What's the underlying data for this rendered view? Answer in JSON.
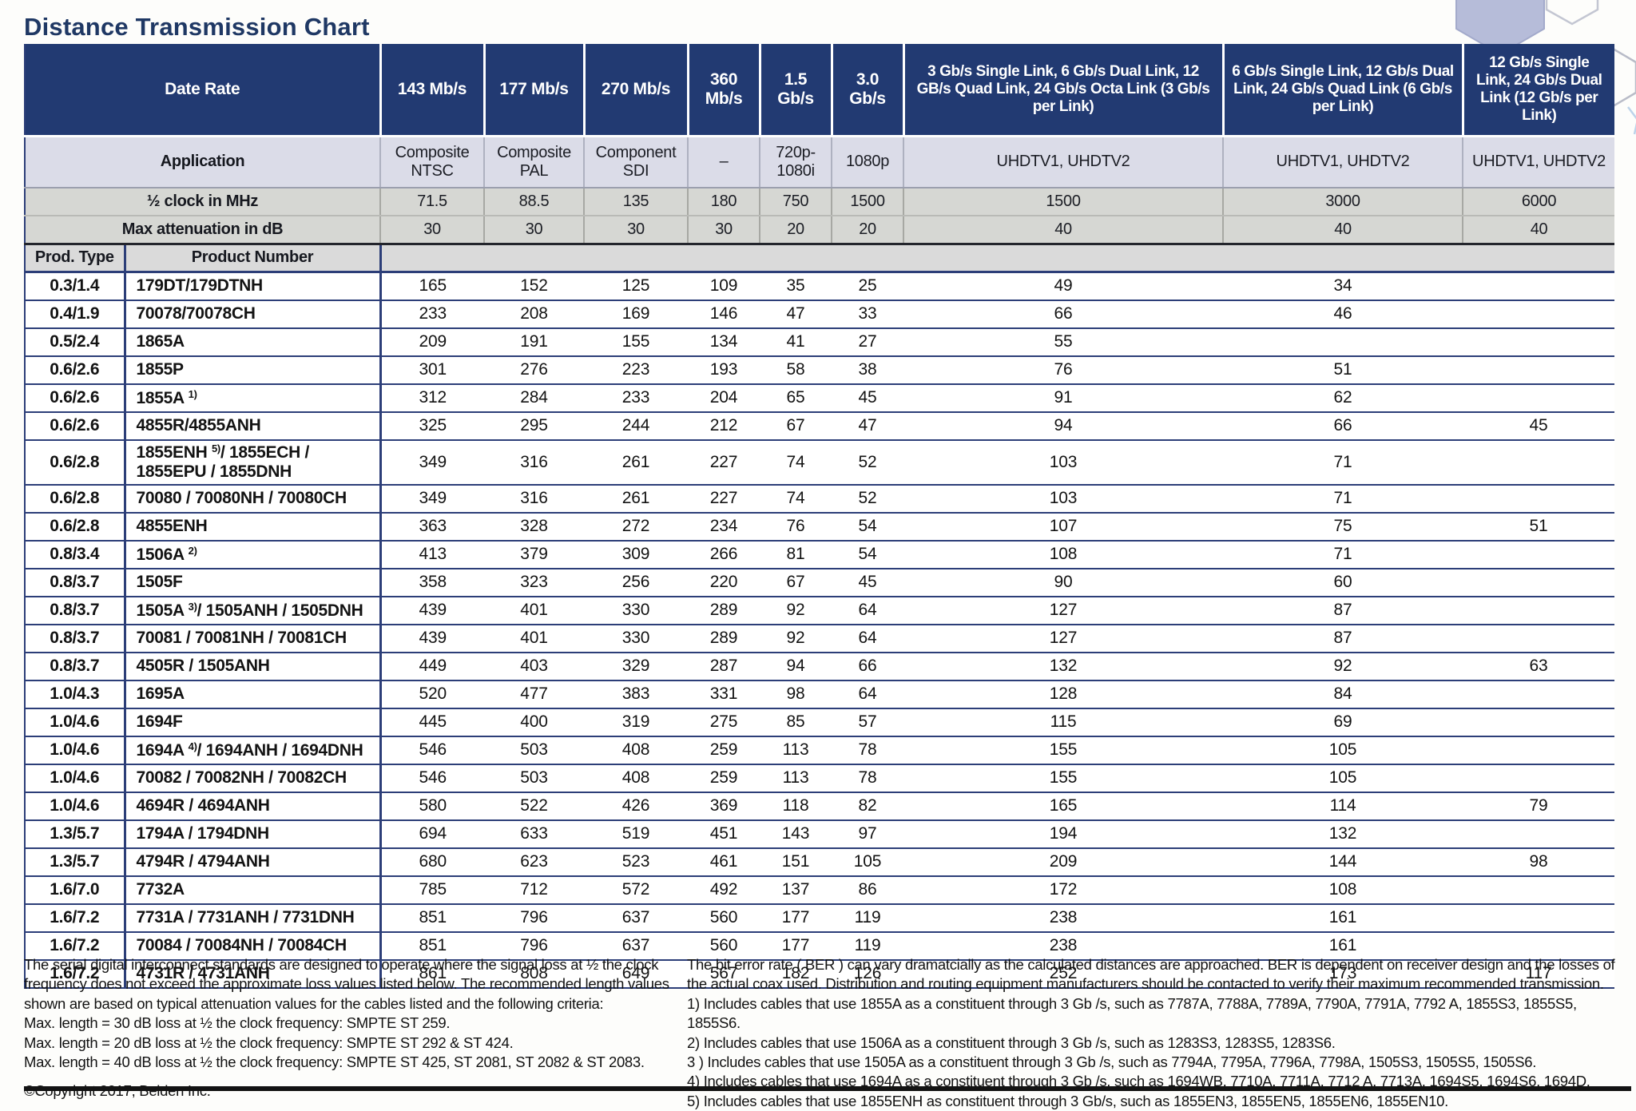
{
  "title": "Distance Transmission Chart",
  "colors": {
    "header_blue": "#223a72",
    "application_row": "#dbdce8",
    "metric_row_gray": "#d6d7d3",
    "grid_line_navy": "#2c3e78",
    "hexagon_fill": "#b6bcd9"
  },
  "header": {
    "date_rate_label": "Date Rate",
    "application_label": "Application",
    "half_clock_label": "½ clock in MHz",
    "max_atten_label": "Max attenuation in dB",
    "prod_type_label": "Prod. Type",
    "product_number_label": "Product Number",
    "rate_columns": [
      "143 Mb/s",
      "177 Mb/s",
      "270 Mb/s",
      "360 Mb/s",
      "1.5 Gb/s",
      "3.0 Gb/s",
      "3 Gb/s Single Link, 6 Gb/s Dual Link, 12 GB/s Quad Link, 24 Gb/s Octa Link (3 Gb/s per Link)",
      "6 Gb/s Single Link, 12 Gb/s Dual Link, 24 Gb/s Quad Link (6 Gb/s per Link)",
      "12 Gb/s Single Link, 24 Gb/s Dual Link (12 Gb/s per Link)"
    ],
    "applications": [
      "Composite NTSC",
      "Composite PAL",
      "Component SDI",
      "–",
      "720p- 1080i",
      "1080p",
      "UHDTV1, UHDTV2",
      "UHDTV1, UHDTV2",
      "UHDTV1, UHDTV2"
    ],
    "half_clock": [
      "71.5",
      "88.5",
      "135",
      "180",
      "750",
      "1500",
      "1500",
      "3000",
      "6000"
    ],
    "max_attenuation": [
      "30",
      "30",
      "30",
      "30",
      "20",
      "20",
      "40",
      "40",
      "40"
    ]
  },
  "rows": [
    {
      "type": "0.3/1.4",
      "pre": "179DT/179DTNH",
      "sup": "",
      "post": "",
      "values": [
        "165",
        "152",
        "125",
        "109",
        "35",
        "25",
        "49",
        "34",
        ""
      ]
    },
    {
      "type": "0.4/1.9",
      "pre": "70078/70078CH",
      "sup": "",
      "post": "",
      "values": [
        "233",
        "208",
        "169",
        "146",
        "47",
        "33",
        "66",
        "46",
        ""
      ]
    },
    {
      "type": "0.5/2.4",
      "pre": "1865A",
      "sup": "",
      "post": "",
      "values": [
        "209",
        "191",
        "155",
        "134",
        "41",
        "27",
        "55",
        "",
        ""
      ]
    },
    {
      "type": "0.6/2.6",
      "pre": "1855P",
      "sup": "",
      "post": "",
      "values": [
        "301",
        "276",
        "223",
        "193",
        "58",
        "38",
        "76",
        "51",
        ""
      ]
    },
    {
      "type": "0.6/2.6",
      "pre": "1855A ",
      "sup": "1)",
      "post": "",
      "values": [
        "312",
        "284",
        "233",
        "204",
        "65",
        "45",
        "91",
        "62",
        ""
      ]
    },
    {
      "type": "0.6/2.6",
      "pre": "4855R/4855ANH",
      "sup": "",
      "post": "",
      "values": [
        "325",
        "295",
        "244",
        "212",
        "67",
        "47",
        "94",
        "66",
        "45"
      ]
    },
    {
      "type": "0.6/2.8",
      "pre": "1855ENH ",
      "sup": "5)",
      "post": "/ 1855ECH / 1855EPU / 1855DNH",
      "values": [
        "349",
        "316",
        "261",
        "227",
        "74",
        "52",
        "103",
        "71",
        ""
      ]
    },
    {
      "type": "0.6/2.8",
      "pre": "70080 / 70080NH / 70080CH",
      "sup": "",
      "post": "",
      "values": [
        "349",
        "316",
        "261",
        "227",
        "74",
        "52",
        "103",
        "71",
        ""
      ]
    },
    {
      "type": "0.6/2.8",
      "pre": "4855ENH",
      "sup": "",
      "post": "",
      "values": [
        "363",
        "328",
        "272",
        "234",
        "76",
        "54",
        "107",
        "75",
        "51"
      ]
    },
    {
      "type": "0.8/3.4",
      "pre": "1506A ",
      "sup": "2)",
      "post": "",
      "values": [
        "413",
        "379",
        "309",
        "266",
        "81",
        "54",
        "108",
        "71",
        ""
      ]
    },
    {
      "type": "0.8/3.7",
      "pre": "1505F",
      "sup": "",
      "post": "",
      "values": [
        "358",
        "323",
        "256",
        "220",
        "67",
        "45",
        "90",
        "60",
        ""
      ]
    },
    {
      "type": "0.8/3.7",
      "pre": "1505A ",
      "sup": "3)",
      "post": "/ 1505ANH / 1505DNH",
      "values": [
        "439",
        "401",
        "330",
        "289",
        "92",
        "64",
        "127",
        "87",
        ""
      ]
    },
    {
      "type": "0.8/3.7",
      "pre": "70081 / 70081NH / 70081CH",
      "sup": "",
      "post": "",
      "values": [
        "439",
        "401",
        "330",
        "289",
        "92",
        "64",
        "127",
        "87",
        ""
      ]
    },
    {
      "type": "0.8/3.7",
      "pre": "4505R / 1505ANH",
      "sup": "",
      "post": "",
      "values": [
        "449",
        "403",
        "329",
        "287",
        "94",
        "66",
        "132",
        "92",
        "63"
      ]
    },
    {
      "type": "1.0/4.3",
      "pre": "1695A",
      "sup": "",
      "post": "",
      "values": [
        "520",
        "477",
        "383",
        "331",
        "98",
        "64",
        "128",
        "84",
        ""
      ]
    },
    {
      "type": "1.0/4.6",
      "pre": "1694F",
      "sup": "",
      "post": "",
      "values": [
        "445",
        "400",
        "319",
        "275",
        "85",
        "57",
        "115",
        "69",
        ""
      ]
    },
    {
      "type": "1.0/4.6",
      "pre": "1694A ",
      "sup": "4)",
      "post": "/ 1694ANH / 1694DNH",
      "values": [
        "546",
        "503",
        "408",
        "259",
        "113",
        "78",
        "155",
        "105",
        ""
      ]
    },
    {
      "type": "1.0/4.6",
      "pre": "70082 / 70082NH / 70082CH",
      "sup": "",
      "post": "",
      "values": [
        "546",
        "503",
        "408",
        "259",
        "113",
        "78",
        "155",
        "105",
        ""
      ]
    },
    {
      "type": "1.0/4.6",
      "pre": "4694R / 4694ANH",
      "sup": "",
      "post": "",
      "values": [
        "580",
        "522",
        "426",
        "369",
        "118",
        "82",
        "165",
        "114",
        "79"
      ]
    },
    {
      "type": "1.3/5.7",
      "pre": "1794A / 1794DNH",
      "sup": "",
      "post": "",
      "values": [
        "694",
        "633",
        "519",
        "451",
        "143",
        "97",
        "194",
        "132",
        ""
      ]
    },
    {
      "type": "1.3/5.7",
      "pre": "4794R / 4794ANH",
      "sup": "",
      "post": "",
      "values": [
        "680",
        "623",
        "523",
        "461",
        "151",
        "105",
        "209",
        "144",
        "98"
      ]
    },
    {
      "type": "1.6/7.0",
      "pre": "7732A",
      "sup": "",
      "post": "",
      "values": [
        "785",
        "712",
        "572",
        "492",
        "137",
        "86",
        "172",
        "108",
        ""
      ]
    },
    {
      "type": "1.6/7.2",
      "pre": "7731A / 7731ANH / 7731DNH",
      "sup": "",
      "post": "",
      "values": [
        "851",
        "796",
        "637",
        "560",
        "177",
        "119",
        "238",
        "161",
        ""
      ]
    },
    {
      "type": "1.6/7.2",
      "pre": "70084 / 70084NH / 70084CH",
      "sup": "",
      "post": "",
      "values": [
        "851",
        "796",
        "637",
        "560",
        "177",
        "119",
        "238",
        "161",
        ""
      ]
    },
    {
      "type": "1.6/7.2",
      "pre": "4731R / 4731ANH",
      "sup": "",
      "post": "",
      "values": [
        "861",
        "808",
        "649",
        "567",
        "182",
        "126",
        "252",
        "173",
        "117"
      ]
    }
  ],
  "footnotes_left": {
    "intro": "The serial digital interconnect standards are designed to operate where the signal loss at ½ the clock frequency does not exceed the approximate loss values listed below. The recommended length values shown are based on typical attenuation values for the cables listed and the following criteria:",
    "criteria": [
      "Max. length = 30 dB loss at ½ the clock frequency: SMPTE ST 259.",
      "Max. length = 20 dB loss at ½ the clock frequency: SMPTE ST 292 & ST 424.",
      "Max. length = 40 dB loss at ½ the clock frequency: SMPTE ST 425, ST 2081, ST 2082 & ST 2083."
    ],
    "copyright": "©Copyright 2017, Belden Inc."
  },
  "footnotes_right": {
    "intro": "The bit error rate ( BER ) can vary dramatcially as the calculated distances are approached. BER is dependent on receiver design and the losses of the actual coax used. Distribution and routing equipment manufacturers should be contacted to verify their maximum recommended transmission.",
    "notes": [
      "1) Includes cables that use 1855A as a constituent through 3 Gb /s, such as 7787A, 7788A, 7789A, 7790A, 7791A, 7792 A, 1855S3, 1855S5, 1855S6.",
      "2) Includes cables that use 1506A as a constituent through 3 Gb /s, such as 1283S3, 1283S5, 1283S6.",
      "3 ) Includes cables that use 1505A as a constituent through 3 Gb /s, such as 7794A, 7795A, 7796A, 7798A, 1505S3, 1505S5, 1505S6.",
      "4) Includes cables that use 1694A as a constituent through 3 Gb /s, such as 1694WB, 7710A, 7711A, 7712 A, 7713A, 1694S5, 1694S6, 1694D.",
      "5) Includes cables that use 1855ENH as constituent through 3 Gb/s, such as 1855EN3, 1855EN5, 1855EN6, 1855EN10."
    ]
  }
}
